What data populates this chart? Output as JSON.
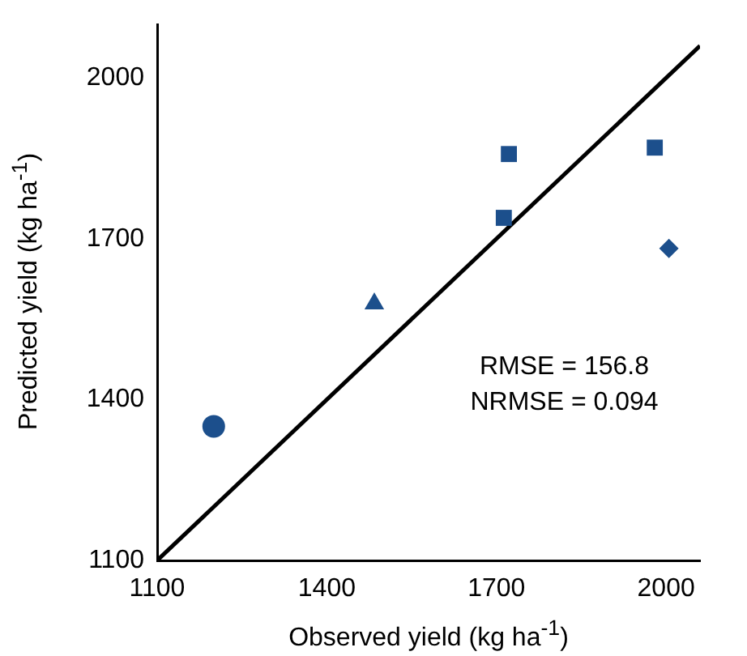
{
  "chart_data": {
    "type": "scatter",
    "xlabel": "Observed yield (kg ha$^{-1}$)",
    "ylabel": "Predicted yield (kg ha$^{-1}$)",
    "xlim": [
      1100,
      2060
    ],
    "ylim": [
      1100,
      2100
    ],
    "xticks": [
      1100,
      1400,
      1700,
      2000
    ],
    "yticks": [
      1100,
      1400,
      1700,
      2000
    ],
    "grid": false,
    "legend": false,
    "series": [
      {
        "type": "scatter",
        "marker": "circle",
        "color": "#1c4f8c",
        "x": [
          1200
        ],
        "values": [
          1350
        ]
      },
      {
        "type": "scatter",
        "marker": "triangle",
        "color": "#1c4f8c",
        "x": [
          1484
        ],
        "values": [
          1579
        ]
      },
      {
        "type": "scatter",
        "marker": "square",
        "color": "#1c4f8c",
        "x": [
          1722,
          1713,
          1980
        ],
        "values": [
          1858,
          1739,
          1870
        ]
      },
      {
        "type": "scatter",
        "marker": "diamond",
        "color": "#1c4f8c",
        "x": [
          2005
        ],
        "values": [
          1682
        ]
      },
      {
        "type": "line",
        "marker": "none",
        "line_style": "solid",
        "color": "#000000",
        "x": [
          1100,
          2060
        ],
        "values": [
          1100,
          2060
        ]
      }
    ],
    "annotations": [
      "RMSE = 156.8",
      "NRMSE = 0.094"
    ]
  }
}
